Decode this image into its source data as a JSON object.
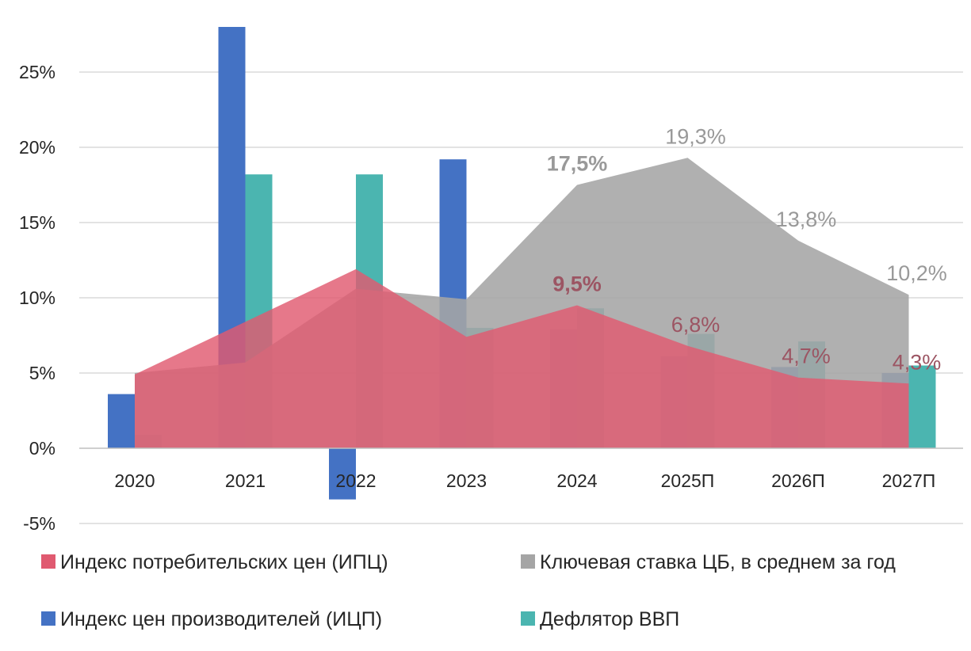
{
  "chart_data": {
    "type": "bar+area",
    "title": "",
    "xlabel": "",
    "ylabel": "",
    "ylim": [
      -5,
      28
    ],
    "yticks": [
      "-5%",
      "0%",
      "5%",
      "10%",
      "15%",
      "20%",
      "25%"
    ],
    "ytick_values": [
      -5,
      0,
      5,
      10,
      15,
      20,
      25
    ],
    "grid": true,
    "legend_position": "bottom",
    "categories": [
      "2020",
      "2021",
      "2022",
      "2023",
      "2024",
      "2025П",
      "2026П",
      "2027П"
    ],
    "series": [
      {
        "name": "Индекс потребительских цен (ИПЦ)",
        "kind": "area",
        "color": "#e05a70",
        "values": [
          4.9,
          8.4,
          11.9,
          7.4,
          9.5,
          6.8,
          4.7,
          4.3
        ],
        "labels": [
          "",
          "",
          "",
          "",
          "9,5%",
          "6,8%",
          "4,7%",
          "4,3%"
        ],
        "label_color": "#9c5563"
      },
      {
        "name": "Ключевая ставка ЦБ, в среднем за год",
        "kind": "area",
        "color": "#a5a5a5",
        "values": [
          5.0,
          5.7,
          10.6,
          9.9,
          17.5,
          19.3,
          13.8,
          10.2
        ],
        "labels": [
          "",
          "",
          "",
          "",
          "17,5%",
          "19,3%",
          "13,8%",
          "10,2%"
        ],
        "label_color": "#999999"
      },
      {
        "name": "Индекс цен производителей (ИЦП)",
        "kind": "bar",
        "color": "#4472c4",
        "values": [
          3.6,
          28.0,
          -3.4,
          19.2,
          7.9,
          6.1,
          5.4,
          5.0
        ]
      },
      {
        "name": "Дефлятор ВВП",
        "kind": "bar",
        "color": "#4bb5b0",
        "values": [
          0.9,
          18.2,
          18.2,
          8.0,
          9.3,
          7.6,
          7.1,
          5.5
        ]
      }
    ],
    "bold_labels": [
      "17,5%",
      "9,5%"
    ]
  }
}
